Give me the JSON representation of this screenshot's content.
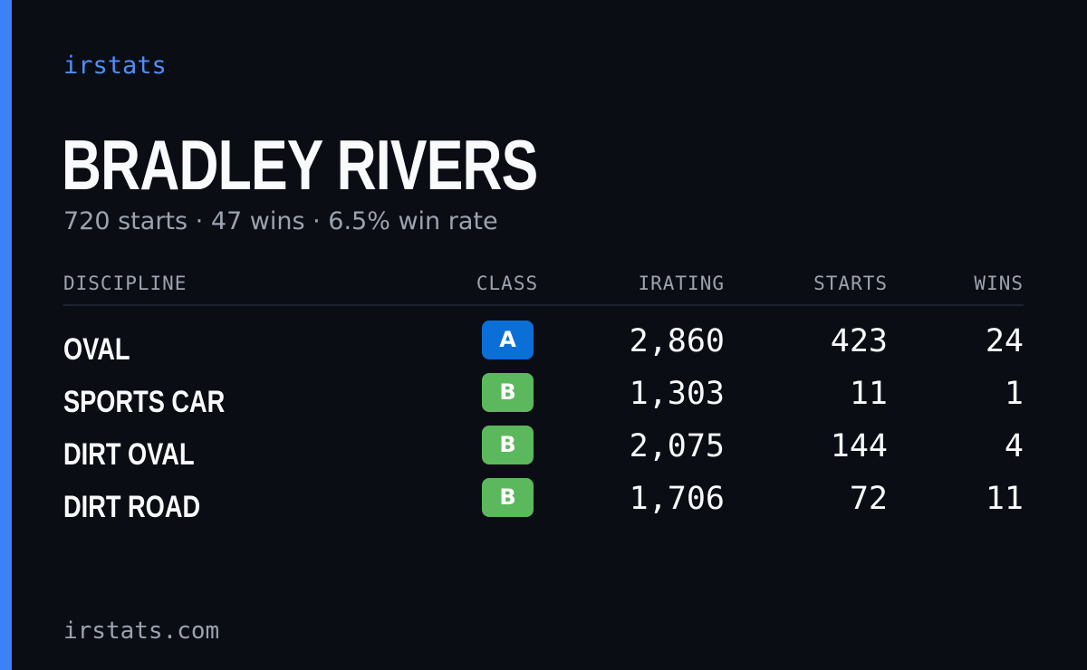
{
  "brand": {
    "name": "irstats"
  },
  "driver": {
    "name": "BRADLEY RIVERS",
    "summary": "720 starts · 47 wins · 6.5% win rate"
  },
  "table": {
    "headers": {
      "discipline": "DISCIPLINE",
      "class": "CLASS",
      "irating": "IRATING",
      "starts": "STARTS",
      "wins": "WINS"
    },
    "rows": [
      {
        "discipline": "OVAL",
        "class": "A",
        "class_color": "#0a6fd6",
        "irating": "2,860",
        "starts": "423",
        "wins": "24"
      },
      {
        "discipline": "SPORTS CAR",
        "class": "B",
        "class_color": "#5cb85c",
        "irating": "1,303",
        "starts": "11",
        "wins": "1"
      },
      {
        "discipline": "DIRT OVAL",
        "class": "B",
        "class_color": "#5cb85c",
        "irating": "2,075",
        "starts": "144",
        "wins": "4"
      },
      {
        "discipline": "DIRT ROAD",
        "class": "B",
        "class_color": "#5cb85c",
        "irating": "1,706",
        "starts": "72",
        "wins": "11"
      }
    ]
  },
  "footer": {
    "url": "irstats.com"
  },
  "colors": {
    "background": "#0a0d14",
    "accent": "#3b82f6",
    "brand_text": "#4f8ff7",
    "muted_text": "#9ca3af",
    "primary_text": "#f8fafc"
  }
}
